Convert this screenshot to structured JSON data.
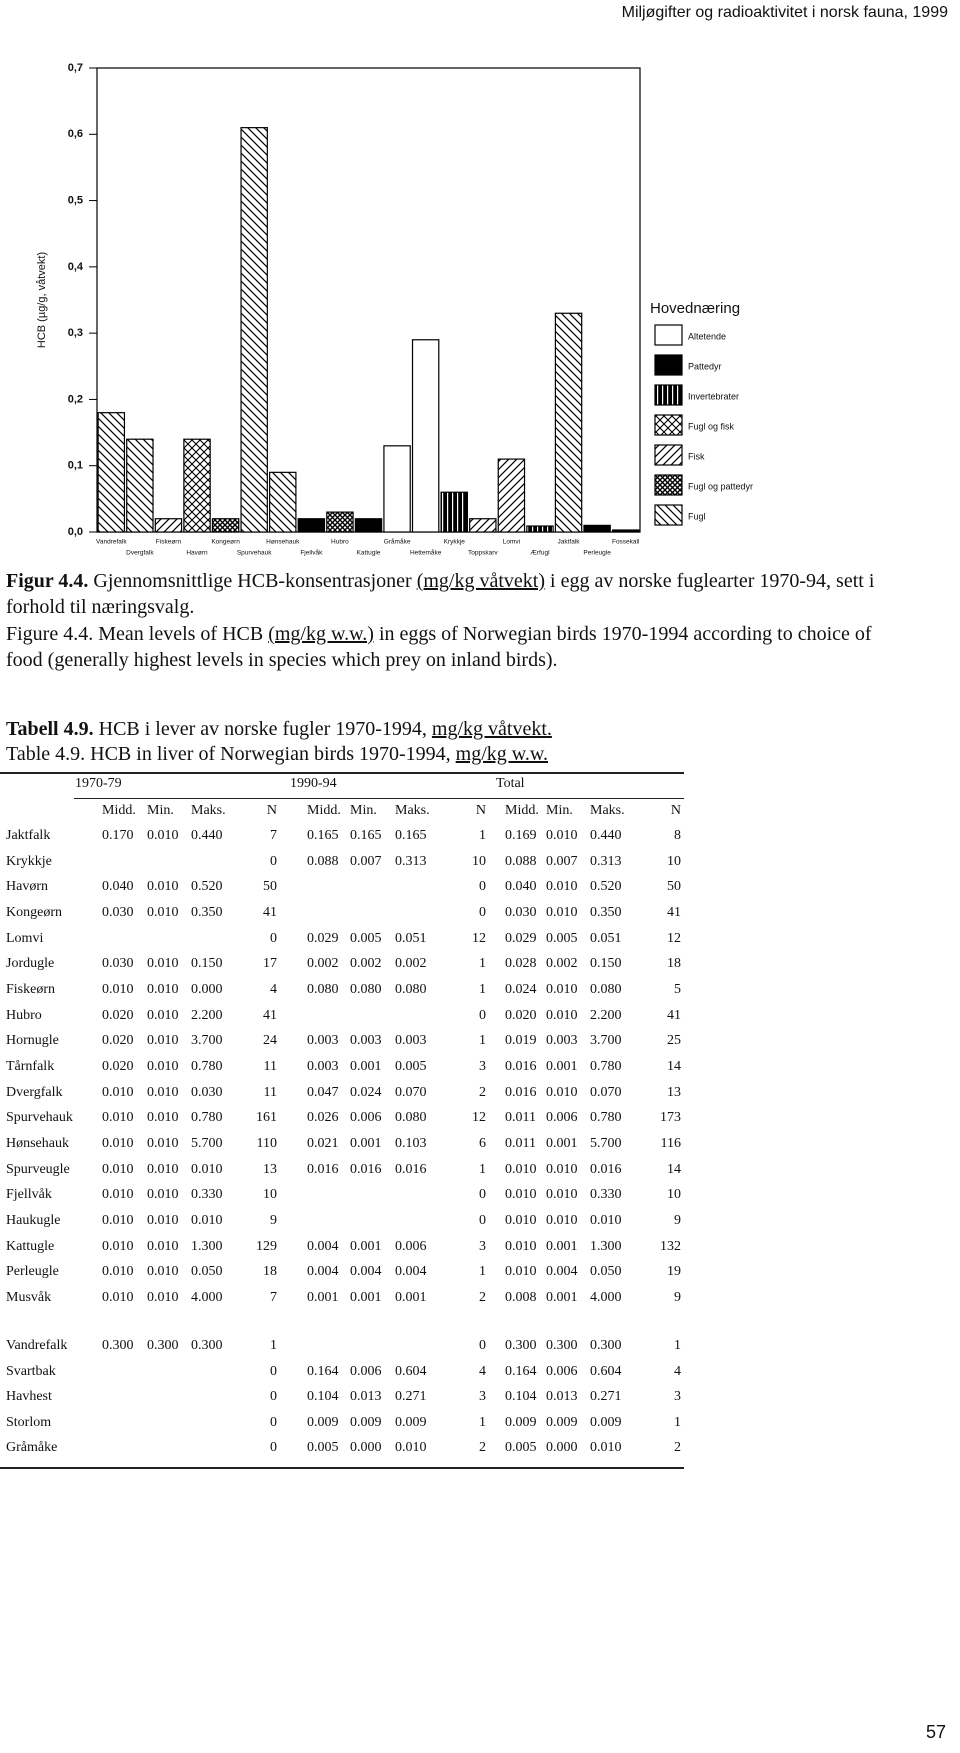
{
  "header": {
    "running_title": "Miljøgifter og radioaktivitet i norsk fauna, 1999"
  },
  "chart_data": {
    "type": "bar",
    "y_label": "HCB (µg/g, våtvekt)",
    "legend_title": "Hovednæring",
    "categories": [
      "Vandrefalk",
      "Dvergfalk",
      "Fiskeørn",
      "Havørn",
      "Kongeørn",
      "Spurvehauk",
      "Hønsehauk",
      "Fjellvåk",
      "Hubro",
      "Kattugle",
      "Gråmåke",
      "Hettemåke",
      "Krykkje",
      "Toppskarv",
      "Lomvi",
      "Ærfugl",
      "Jaktfalk",
      "Perleugle",
      "Fossekall"
    ],
    "series": [
      {
        "name": "Altetende",
        "hatch": "none",
        "color": "#000000",
        "values": [
          null,
          null,
          null,
          null,
          null,
          null,
          null,
          null,
          null,
          null,
          0.13,
          0.29,
          null,
          null,
          null,
          null,
          null,
          null,
          null
        ]
      },
      {
        "name": "Pattedyr",
        "hatch": "solid",
        "color": "#000000",
        "values": [
          null,
          null,
          null,
          null,
          null,
          null,
          null,
          0.02,
          null,
          0.02,
          null,
          null,
          null,
          null,
          null,
          null,
          null,
          0.01,
          0.003
        ]
      },
      {
        "name": "Invertebrater",
        "hatch": "vertical",
        "color": "#000000",
        "values": [
          null,
          null,
          null,
          null,
          null,
          null,
          null,
          null,
          null,
          null,
          null,
          null,
          0.06,
          null,
          null,
          0.009,
          null,
          null,
          null
        ]
      },
      {
        "name": "Fugl og fisk",
        "hatch": "cross",
        "color": "#000000",
        "values": [
          null,
          null,
          null,
          0.14,
          null,
          null,
          null,
          null,
          null,
          null,
          null,
          null,
          null,
          null,
          null,
          null,
          null,
          null,
          null
        ]
      },
      {
        "name": "Fisk",
        "hatch": "forward",
        "color": "#000000",
        "values": [
          null,
          null,
          0.02,
          null,
          null,
          null,
          null,
          null,
          null,
          null,
          null,
          null,
          null,
          0.02,
          0.11,
          null,
          null,
          null,
          null
        ]
      },
      {
        "name": "Fugl og pattedyr",
        "hatch": "cross-dense",
        "color": "#000000",
        "values": [
          null,
          null,
          null,
          null,
          0.02,
          null,
          null,
          null,
          0.03,
          null,
          null,
          null,
          null,
          null,
          null,
          null,
          null,
          null,
          null
        ]
      },
      {
        "name": "Fugl",
        "hatch": "backward",
        "color": "#000000",
        "values": [
          0.18,
          0.14,
          null,
          null,
          null,
          0.61,
          0.09,
          null,
          null,
          null,
          null,
          null,
          null,
          null,
          null,
          null,
          0.33,
          null,
          null
        ]
      }
    ],
    "ylim": [
      0,
      0.7
    ],
    "yticks": [
      {
        "value": 0,
        "label": "0,0"
      },
      {
        "value": 0.1,
        "label": "0,1"
      },
      {
        "value": 0.2,
        "label": "0,2"
      },
      {
        "value": 0.3,
        "label": "0,3"
      },
      {
        "value": 0.4,
        "label": "0,4"
      },
      {
        "value": 0.5,
        "label": "0,5"
      },
      {
        "value": 0.6,
        "label": "0,6"
      },
      {
        "value": 0.7,
        "label": "0,7"
      }
    ]
  },
  "figure_caption": {
    "no": {
      "number": "Figur 4.4.",
      "before": " Gjennomsnittlige HCB-konsentrasjoner ",
      "underline": "(mg/kg våtvekt)",
      "after": " i egg av norske fuglearter 1970-94, sett i forhold til næringsvalg."
    },
    "en": {
      "number": "Figure 4.4.",
      "before": " Mean levels of HCB ",
      "underline": "(mg/kg w.w.)",
      "after": " in eggs of Norwegian birds 1970-1994 according to choice of food (generally highest levels in species which prey on inland birds)."
    }
  },
  "table_caption": {
    "no": {
      "number": "Tabell 4.9.",
      "before": " HCB i lever av norske fugler 1970-1994, ",
      "underline": "mg/kg våtvekt."
    },
    "en": {
      "number": "Table 4.9.",
      "before": " HCB in liver of Norwegian birds 1970-1994, ",
      "underline": "mg/kg w.w."
    }
  },
  "table": {
    "periods": [
      "1970-79",
      "1990-94",
      "Total"
    ],
    "columns": [
      "Midd.",
      "Min.",
      "Maks.",
      "N",
      "Midd.",
      "Min.",
      "Maks.",
      "N",
      "Midd.",
      "Min.",
      "Maks.",
      "N"
    ],
    "groups": [
      [
        [
          "Jaktfalk",
          "0.170",
          "0.010",
          "0.440",
          "7",
          "0.165",
          "0.165",
          "0.165",
          "1",
          "0.169",
          "0.010",
          "0.440",
          "8"
        ],
        [
          "Krykkje",
          null,
          null,
          null,
          "0",
          "0.088",
          "0.007",
          "0.313",
          "10",
          "0.088",
          "0.007",
          "0.313",
          "10"
        ],
        [
          "Havørn",
          "0.040",
          "0.010",
          "0.520",
          "50",
          null,
          null,
          null,
          "0",
          "0.040",
          "0.010",
          "0.520",
          "50"
        ],
        [
          "Kongeørn",
          "0.030",
          "0.010",
          "0.350",
          "41",
          null,
          null,
          null,
          "0",
          "0.030",
          "0.010",
          "0.350",
          "41"
        ],
        [
          "Lomvi",
          null,
          null,
          null,
          "0",
          "0.029",
          "0.005",
          "0.051",
          "12",
          "0.029",
          "0.005",
          "0.051",
          "12"
        ],
        [
          "Jordugle",
          "0.030",
          "0.010",
          "0.150",
          "17",
          "0.002",
          "0.002",
          "0.002",
          "1",
          "0.028",
          "0.002",
          "0.150",
          "18"
        ],
        [
          "Fiskeørn",
          "0.010",
          "0.010",
          "0.000",
          "4",
          "0.080",
          "0.080",
          "0.080",
          "1",
          "0.024",
          "0.010",
          "0.080",
          "5"
        ],
        [
          "Hubro",
          "0.020",
          "0.010",
          "2.200",
          "41",
          null,
          null,
          null,
          "0",
          "0.020",
          "0.010",
          "2.200",
          "41"
        ],
        [
          "Hornugle",
          "0.020",
          "0.010",
          "3.700",
          "24",
          "0.003",
          "0.003",
          "0.003",
          "1",
          "0.019",
          "0.003",
          "3.700",
          "25"
        ],
        [
          "Tårnfalk",
          "0.020",
          "0.010",
          "0.780",
          "11",
          "0.003",
          "0.001",
          "0.005",
          "3",
          "0.016",
          "0.001",
          "0.780",
          "14"
        ],
        [
          "Dvergfalk",
          "0.010",
          "0.010",
          "0.030",
          "11",
          "0.047",
          "0.024",
          "0.070",
          "2",
          "0.016",
          "0.010",
          "0.070",
          "13"
        ],
        [
          "Spurvehauk",
          "0.010",
          "0.010",
          "0.780",
          "161",
          "0.026",
          "0.006",
          "0.080",
          "12",
          "0.011",
          "0.006",
          "0.780",
          "173"
        ],
        [
          "Hønsehauk",
          "0.010",
          "0.010",
          "5.700",
          "110",
          "0.021",
          "0.001",
          "0.103",
          "6",
          "0.011",
          "0.001",
          "5.700",
          "116"
        ],
        [
          "Spurveugle",
          "0.010",
          "0.010",
          "0.010",
          "13",
          "0.016",
          "0.016",
          "0.016",
          "1",
          "0.010",
          "0.010",
          "0.016",
          "14"
        ],
        [
          "Fjellvåk",
          "0.010",
          "0.010",
          "0.330",
          "10",
          null,
          null,
          null,
          "0",
          "0.010",
          "0.010",
          "0.330",
          "10"
        ],
        [
          "Haukugle",
          "0.010",
          "0.010",
          "0.010",
          "9",
          null,
          null,
          null,
          "0",
          "0.010",
          "0.010",
          "0.010",
          "9"
        ],
        [
          "Kattugle",
          "0.010",
          "0.010",
          "1.300",
          "129",
          "0.004",
          "0.001",
          "0.006",
          "3",
          "0.010",
          "0.001",
          "1.300",
          "132"
        ],
        [
          "Perleugle",
          "0.010",
          "0.010",
          "0.050",
          "18",
          "0.004",
          "0.004",
          "0.004",
          "1",
          "0.010",
          "0.004",
          "0.050",
          "19"
        ],
        [
          "Musvåk",
          "0.010",
          "0.010",
          "4.000",
          "7",
          "0.001",
          "0.001",
          "0.001",
          "2",
          "0.008",
          "0.001",
          "4.000",
          "9"
        ]
      ],
      [
        [
          "Vandrefalk",
          "0.300",
          "0.300",
          "0.300",
          "1",
          null,
          null,
          null,
          "0",
          "0.300",
          "0.300",
          "0.300",
          "1"
        ],
        [
          "Svartbak",
          null,
          null,
          null,
          "0",
          "0.164",
          "0.006",
          "0.604",
          "4",
          "0.164",
          "0.006",
          "0.604",
          "4"
        ],
        [
          "Havhest",
          null,
          null,
          null,
          "0",
          "0.104",
          "0.013",
          "0.271",
          "3",
          "0.104",
          "0.013",
          "0.271",
          "3"
        ],
        [
          "Storlom",
          null,
          null,
          null,
          "0",
          "0.009",
          "0.009",
          "0.009",
          "1",
          "0.009",
          "0.009",
          "0.009",
          "1"
        ],
        [
          "Gråmåke",
          null,
          null,
          null,
          "0",
          "0.005",
          "0.000",
          "0.010",
          "2",
          "0.005",
          "0.000",
          "0.010",
          "2"
        ]
      ]
    ]
  },
  "page_number": "57"
}
